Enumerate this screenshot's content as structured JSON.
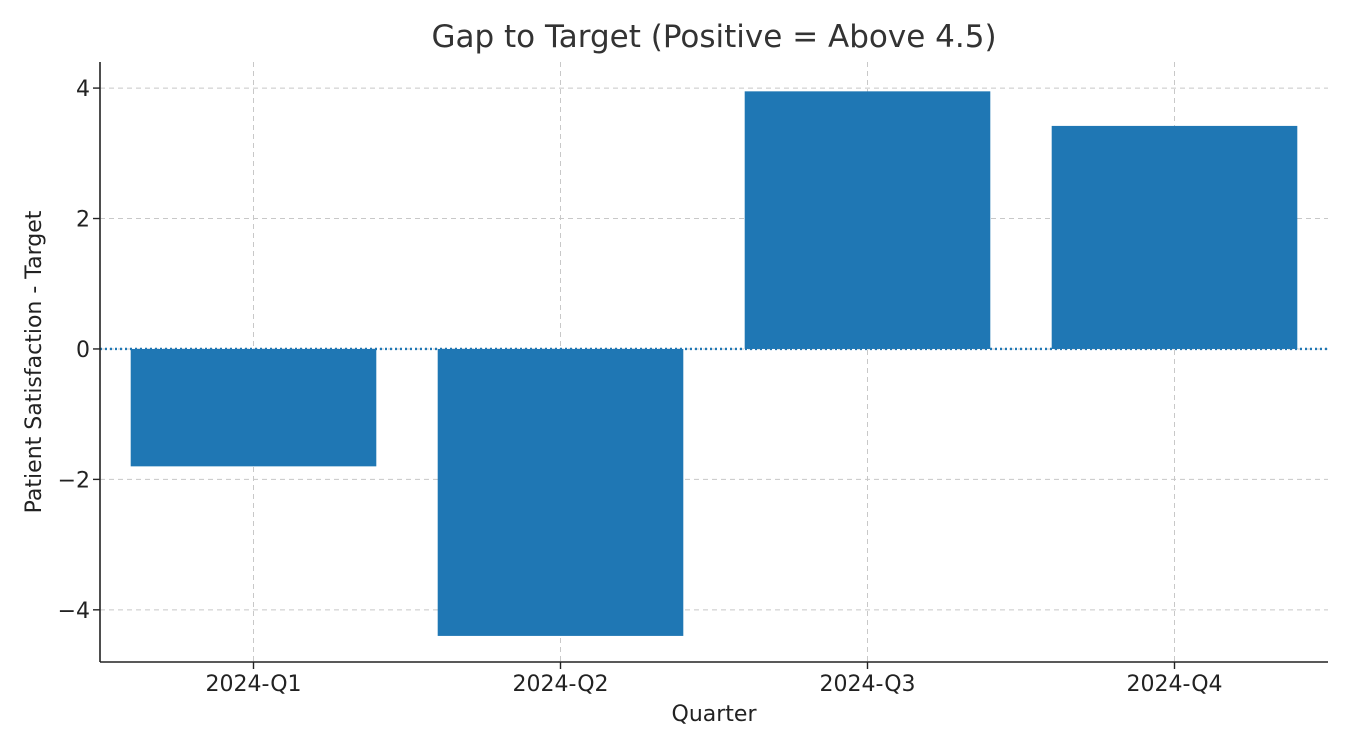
{
  "chart_data": {
    "type": "bar",
    "title": "Gap to Target (Positive = Above 4.5)",
    "xlabel": "Quarter",
    "ylabel": "Patient Satisfaction - Target",
    "categories": [
      "2024-Q1",
      "2024-Q2",
      "2024-Q3",
      "2024-Q4"
    ],
    "values": [
      -1.8,
      -4.4,
      3.95,
      3.42
    ],
    "ylim": [
      -4.8,
      4.4
    ],
    "yticks": [
      -4,
      -2,
      0,
      2,
      4
    ],
    "ytick_labels": [
      "−4",
      "−2",
      "0",
      "2",
      "4"
    ],
    "reference_line": {
      "value": 0,
      "style": "dotted"
    },
    "grid": true,
    "bar_color": "#1f77b4"
  }
}
